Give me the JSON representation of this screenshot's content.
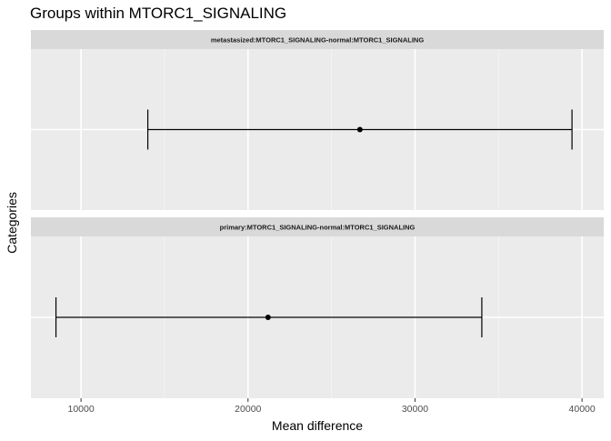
{
  "chart_data": {
    "type": "errorbar",
    "title": "Groups within MTORC1_SIGNALING",
    "xlabel": "Mean difference",
    "ylabel": "Categories",
    "xlim": [
      7000,
      41300
    ],
    "x_ticks": [
      10000,
      20000,
      30000,
      40000
    ],
    "x_tick_labels": [
      "10000",
      "20000",
      "30000",
      "40000"
    ],
    "grid": true,
    "panels": [
      {
        "strip_label": "metastasized:MTORC1_SIGNALING-normal:MTORC1_SIGNALING",
        "estimate": 26700,
        "lower": 14000,
        "upper": 39400
      },
      {
        "strip_label": "primary:MTORC1_SIGNALING-normal:MTORC1_SIGNALING",
        "estimate": 21200,
        "lower": 8500,
        "upper": 34000
      }
    ]
  }
}
